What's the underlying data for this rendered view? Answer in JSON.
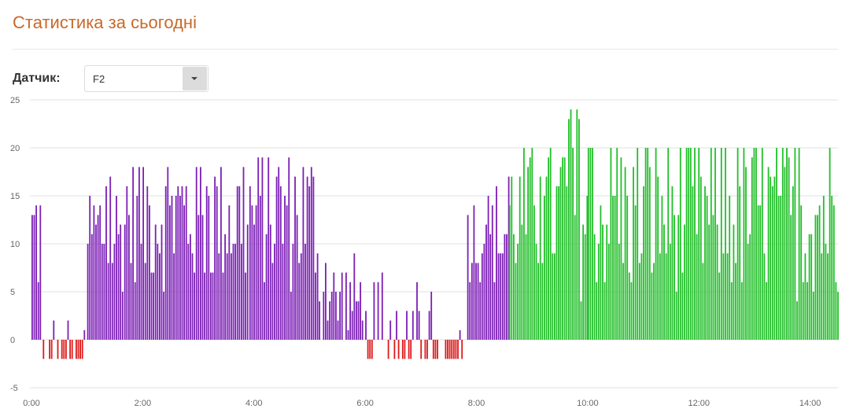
{
  "page": {
    "title": "Статистика за сьогодні"
  },
  "sensor": {
    "label": "Датчик:",
    "selected": "F2"
  },
  "colors": {
    "title": "#c8692a",
    "purple": "#7c1fb5",
    "green": "#22bf2a",
    "red": "#dd1b1b",
    "grid": "#e0e0e0"
  },
  "chart_data": {
    "type": "bar",
    "title": "",
    "xlabel": "",
    "ylabel": "",
    "ylim": [
      -5,
      25
    ],
    "xlim_hours": [
      0,
      14.5
    ],
    "x_ticks": [
      "0:00",
      "2:00",
      "4:00",
      "6:00",
      "8:00",
      "10:00",
      "12:00",
      "14:00"
    ],
    "y_ticks": [
      "-5",
      "0",
      "5",
      "10",
      "15",
      "20",
      "25"
    ],
    "legend": "none",
    "grid": "horizontal",
    "series": [
      {
        "color": "purple",
        "x_range": [
          "0:00",
          "8:35"
        ],
        "segments": [
          {
            "from": "0:00",
            "to": "0:10",
            "min": 0,
            "max": 17,
            "typical": 11
          },
          {
            "from": "0:10",
            "to": "1:00",
            "min": -2,
            "max": 2,
            "typical": -2
          },
          {
            "from": "1:00",
            "to": "1:40",
            "min": 3,
            "max": 17,
            "typical": 11
          },
          {
            "from": "1:40",
            "to": "3:55",
            "min": 1,
            "max": 18,
            "typical": 13
          },
          {
            "from": "3:55",
            "to": "5:10",
            "min": 1,
            "max": 19,
            "typical": 13
          },
          {
            "from": "5:10",
            "to": "6:00",
            "min": 0,
            "max": 11,
            "typical": 4
          },
          {
            "from": "6:00",
            "to": "7:50",
            "min": -2,
            "max": 7,
            "typical": -2
          },
          {
            "from": "7:50",
            "to": "8:35",
            "min": 5,
            "max": 17,
            "typical": 11
          }
        ]
      },
      {
        "color": "green",
        "x_range": [
          "8:35",
          "14:30"
        ],
        "segments": [
          {
            "from": "8:35",
            "to": "9:30",
            "min": 4,
            "max": 20,
            "typical": 13
          },
          {
            "from": "9:30",
            "to": "10:00",
            "min": 1,
            "max": 24,
            "typical": 14
          },
          {
            "from": "10:00",
            "to": "14:30",
            "min": 1,
            "max": 20,
            "typical": 13
          }
        ]
      }
    ]
  }
}
